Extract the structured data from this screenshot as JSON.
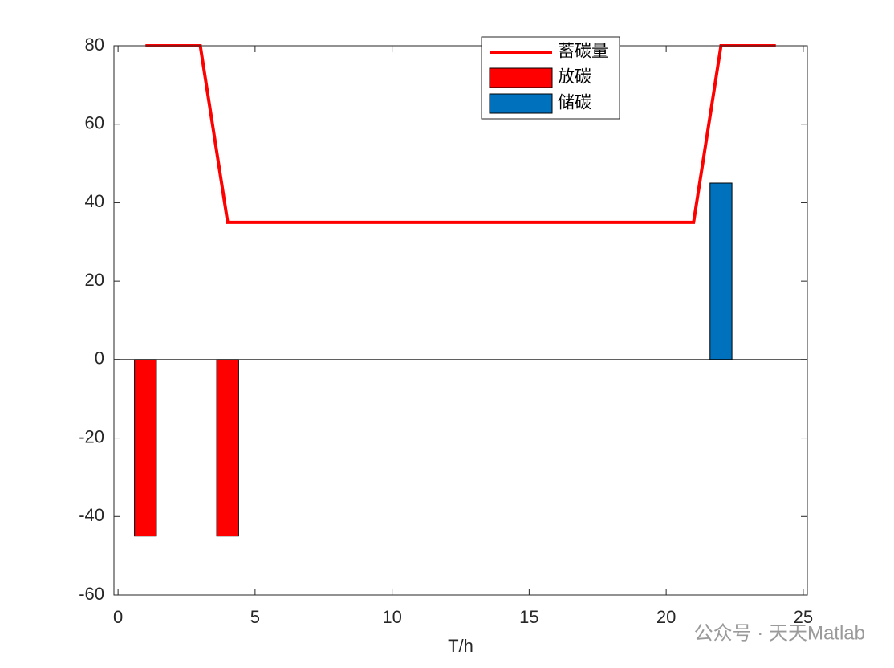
{
  "chart_data": {
    "type": "bar",
    "xlabel": "T/h",
    "x": [
      1,
      2,
      3,
      4,
      5,
      6,
      7,
      8,
      9,
      10,
      11,
      12,
      13,
      14,
      15,
      16,
      17,
      18,
      19,
      20,
      21,
      22,
      23,
      24
    ],
    "series": [
      {
        "name": "蓄碳量",
        "type": "line",
        "color": "#ff0000",
        "values": [
          80,
          80,
          80,
          35,
          35,
          35,
          35,
          35,
          35,
          35,
          35,
          35,
          35,
          35,
          35,
          35,
          35,
          35,
          35,
          35,
          35,
          80,
          80,
          80
        ]
      },
      {
        "name": "放碳",
        "type": "bar",
        "color": "#ff0000",
        "values": [
          -45,
          0,
          0,
          -45,
          0,
          0,
          0,
          0,
          0,
          0,
          0,
          0,
          0,
          0,
          0,
          0,
          0,
          0,
          0,
          0,
          0,
          0,
          0,
          0
        ]
      },
      {
        "name": "储碳",
        "type": "bar",
        "color": "#0072bd",
        "values": [
          0,
          0,
          0,
          0,
          0,
          0,
          0,
          0,
          0,
          0,
          0,
          0,
          0,
          0,
          0,
          0,
          0,
          0,
          0,
          0,
          0,
          45,
          0,
          0
        ]
      }
    ],
    "xlim": [
      -0.15,
      25.15
    ],
    "ylim": [
      -60,
      80
    ],
    "xticks": [
      0,
      5,
      10,
      15,
      20,
      25
    ],
    "yticks": [
      -60,
      -40,
      -20,
      0,
      20,
      40,
      60,
      80
    ],
    "legend": "north",
    "box": true,
    "watermark": "公众号 · 天天Matlab"
  }
}
